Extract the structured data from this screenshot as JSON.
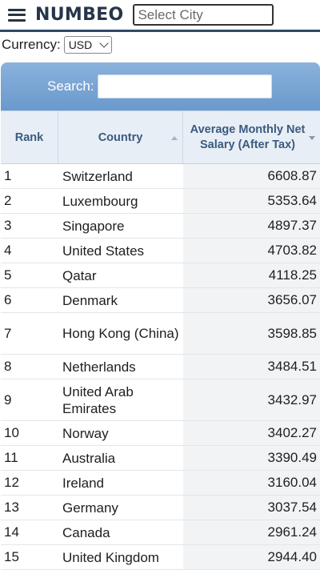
{
  "header": {
    "logo": "NUMBEO",
    "city_placeholder": "Select City",
    "menu_icon": "hamburger-menu-icon"
  },
  "currency": {
    "label": "Currency:",
    "selected": "USD"
  },
  "search": {
    "label": "Search:",
    "value": ""
  },
  "columns": {
    "rank": "Rank",
    "country": "Country",
    "salary": "Average Monthly Net Salary (After Tax)"
  },
  "rows": [
    {
      "rank": "1",
      "country": "Switzerland",
      "salary": "6608.87"
    },
    {
      "rank": "2",
      "country": "Luxembourg",
      "salary": "5353.64"
    },
    {
      "rank": "3",
      "country": "Singapore",
      "salary": "4897.37"
    },
    {
      "rank": "4",
      "country": "United States",
      "salary": "4703.82"
    },
    {
      "rank": "5",
      "country": "Qatar",
      "salary": "4118.25"
    },
    {
      "rank": "6",
      "country": "Denmark",
      "salary": "3656.07"
    },
    {
      "rank": "7",
      "country": "Hong Kong (China)",
      "salary": "3598.85"
    },
    {
      "rank": "8",
      "country": "Netherlands",
      "salary": "3484.51"
    },
    {
      "rank": "9",
      "country": "United Arab Emirates",
      "salary": "3432.97"
    },
    {
      "rank": "10",
      "country": "Norway",
      "salary": "3402.27"
    },
    {
      "rank": "11",
      "country": "Australia",
      "salary": "3390.49"
    },
    {
      "rank": "12",
      "country": "Ireland",
      "salary": "3160.04"
    },
    {
      "rank": "13",
      "country": "Germany",
      "salary": "3037.54"
    },
    {
      "rank": "14",
      "country": "Canada",
      "salary": "2961.24"
    },
    {
      "rank": "15",
      "country": "United Kingdom",
      "salary": "2944.40"
    }
  ]
}
